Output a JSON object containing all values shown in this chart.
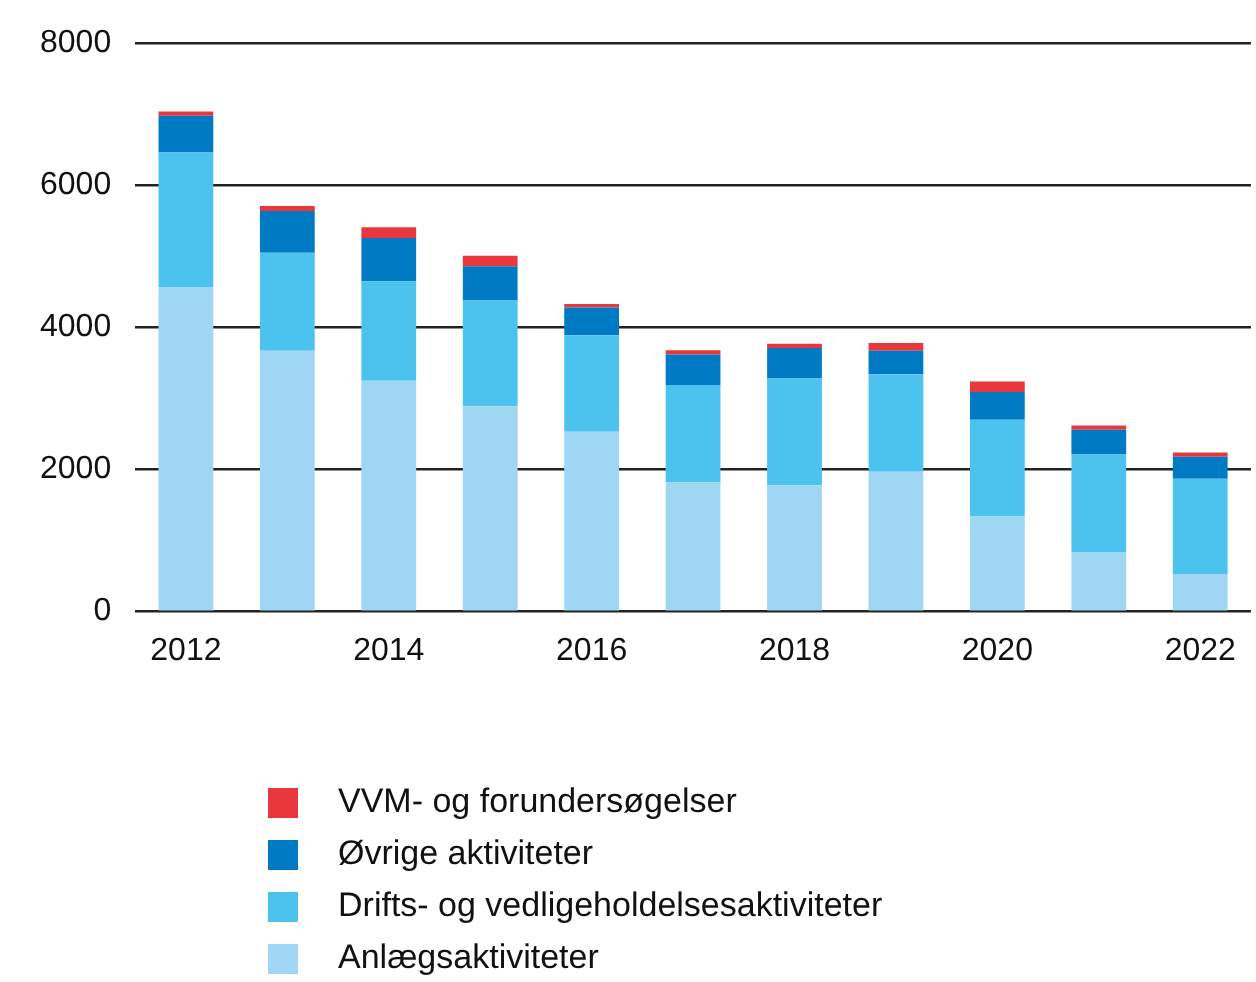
{
  "chart_data": {
    "type": "bar",
    "stacked": true,
    "categories": [
      "2012",
      null,
      "2014",
      null,
      "2016",
      null,
      "2018",
      null,
      "2020",
      null,
      "2022"
    ],
    "series": [
      {
        "name": "Anlægsaktiviteter",
        "color": "#9fd6f4",
        "values": [
          4570,
          3670,
          3250,
          2890,
          2530,
          1820,
          1780,
          1970,
          1340,
          840,
          530
        ]
      },
      {
        "name": "Drifts- og vedligeholdelsesaktiviteter",
        "color": "#4cc2ef",
        "values": [
          1890,
          1380,
          1400,
          1490,
          1360,
          1370,
          1500,
          1370,
          1360,
          1370,
          1340
        ]
      },
      {
        "name": "Øvrige aktiviteter",
        "color": "#007ac3",
        "values": [
          520,
          590,
          610,
          480,
          390,
          430,
          430,
          330,
          390,
          350,
          310
        ]
      },
      {
        "name": "VVM- og forundersøgelser",
        "color": "#e8383d",
        "values": [
          60,
          70,
          150,
          150,
          50,
          60,
          60,
          110,
          150,
          60,
          60
        ]
      }
    ],
    "ylim": [
      0,
      8000
    ],
    "yticks": [
      0,
      2000,
      4000,
      6000,
      8000
    ],
    "grid": "y",
    "legend": "bottom"
  }
}
